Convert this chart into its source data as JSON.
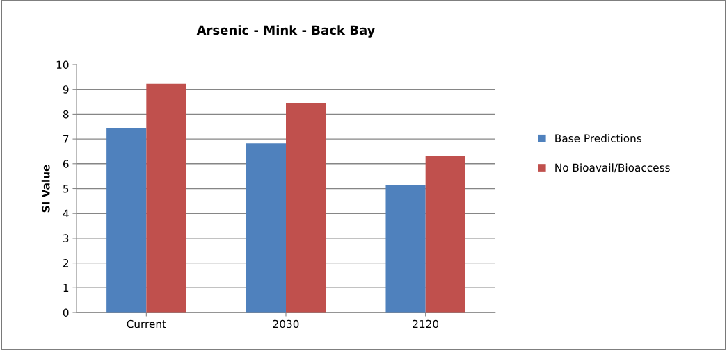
{
  "chart_data": {
    "type": "bar",
    "title": "Arsenic - Mink - Back Bay",
    "ylabel": "SI Value",
    "categories": [
      "Current",
      "2030",
      "2120"
    ],
    "series": [
      {
        "name": "Base Predictions",
        "color": "#4f81bd",
        "values": [
          7.45,
          6.83,
          5.13
        ]
      },
      {
        "name": "No Bioavail/Bioaccess",
        "color": "#c0504d",
        "values": [
          9.22,
          8.43,
          6.33
        ]
      }
    ],
    "ylim": [
      0,
      10
    ],
    "yticks": [
      0,
      1,
      2,
      3,
      4,
      5,
      6,
      7,
      8,
      9,
      10
    ],
    "grid": "y",
    "legend": "right"
  }
}
